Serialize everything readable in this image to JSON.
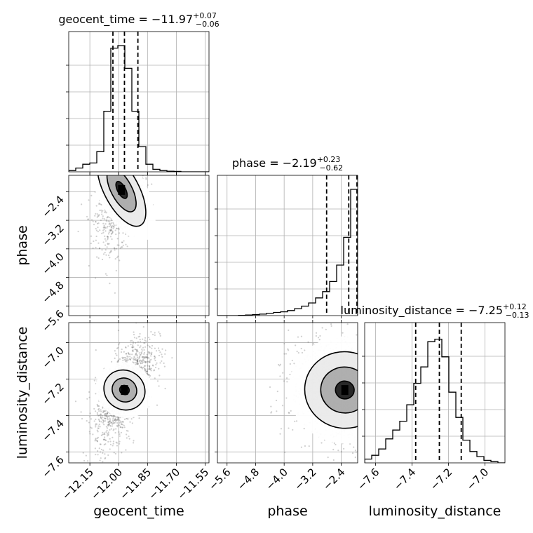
{
  "chart_data": {
    "type": "corner",
    "parameters": [
      {
        "name": "geocent_time",
        "title_prefix": "geocent_time = ",
        "median": "−11.97",
        "plus": "+0.07",
        "minus": "−0.06",
        "range": [
          -12.26,
          -11.53
        ],
        "ticks": [
          -12.15,
          -12.0,
          -11.85,
          -11.7,
          -11.55
        ],
        "tick_labels": [
          "−12.15",
          "−12.00",
          "−11.85",
          "−11.70",
          "−11.55"
        ],
        "quantiles": [
          -12.03,
          -11.97,
          -11.9
        ],
        "hist": [
          0.01,
          0.03,
          0.06,
          0.07,
          0.16,
          0.48,
          0.98,
          1.0,
          0.82,
          0.48,
          0.2,
          0.06,
          0.02,
          0.01,
          0.005,
          0.003,
          0,
          0,
          0,
          0
        ]
      },
      {
        "name": "phase",
        "title_prefix": "phase = ",
        "median": "−2.19",
        "plus": "+0.23",
        "minus": "−0.62",
        "range": [
          -5.87,
          -1.94
        ],
        "ticks": [
          -5.6,
          -4.8,
          -4.0,
          -3.2,
          -2.4
        ],
        "tick_labels": [
          "−5.6",
          "−4.8",
          "−4.0",
          "−3.2",
          "−2.4"
        ],
        "quantiles": [
          -2.81,
          -2.19,
          -1.96
        ],
        "hist": [
          0,
          0,
          0,
          0.002,
          0.005,
          0.008,
          0.012,
          0.018,
          0.025,
          0.03,
          0.04,
          0.055,
          0.075,
          0.1,
          0.14,
          0.19,
          0.27,
          0.4,
          0.62,
          1.0
        ]
      },
      {
        "name": "luminosity_distance",
        "title_prefix": "luminosity_distance = ",
        "median": "−7.25",
        "plus": "+0.12",
        "minus": "−0.13",
        "range": [
          -7.66,
          -6.89
        ],
        "ticks": [
          -7.6,
          -7.4,
          -7.2,
          -7.0
        ],
        "tick_labels": [
          "−7.6",
          "−7.4",
          "−7.2",
          "−7.0"
        ],
        "quantiles": [
          -7.38,
          -7.25,
          -7.13
        ],
        "hist": [
          0.03,
          0.06,
          0.11,
          0.19,
          0.26,
          0.33,
          0.46,
          0.63,
          0.76,
          0.96,
          0.98,
          0.84,
          0.56,
          0.36,
          0.18,
          0.09,
          0.05,
          0.02,
          0.01,
          0
        ]
      }
    ],
    "contours": [
      {
        "x": "geocent_time",
        "y": "phase"
      },
      {
        "x": "geocent_time",
        "y": "luminosity_distance"
      },
      {
        "x": "phase",
        "y": "luminosity_distance"
      }
    ],
    "grid": true,
    "colors": {
      "line": "#000000",
      "samples": "#555555",
      "grid": "#b0b0b0"
    }
  }
}
